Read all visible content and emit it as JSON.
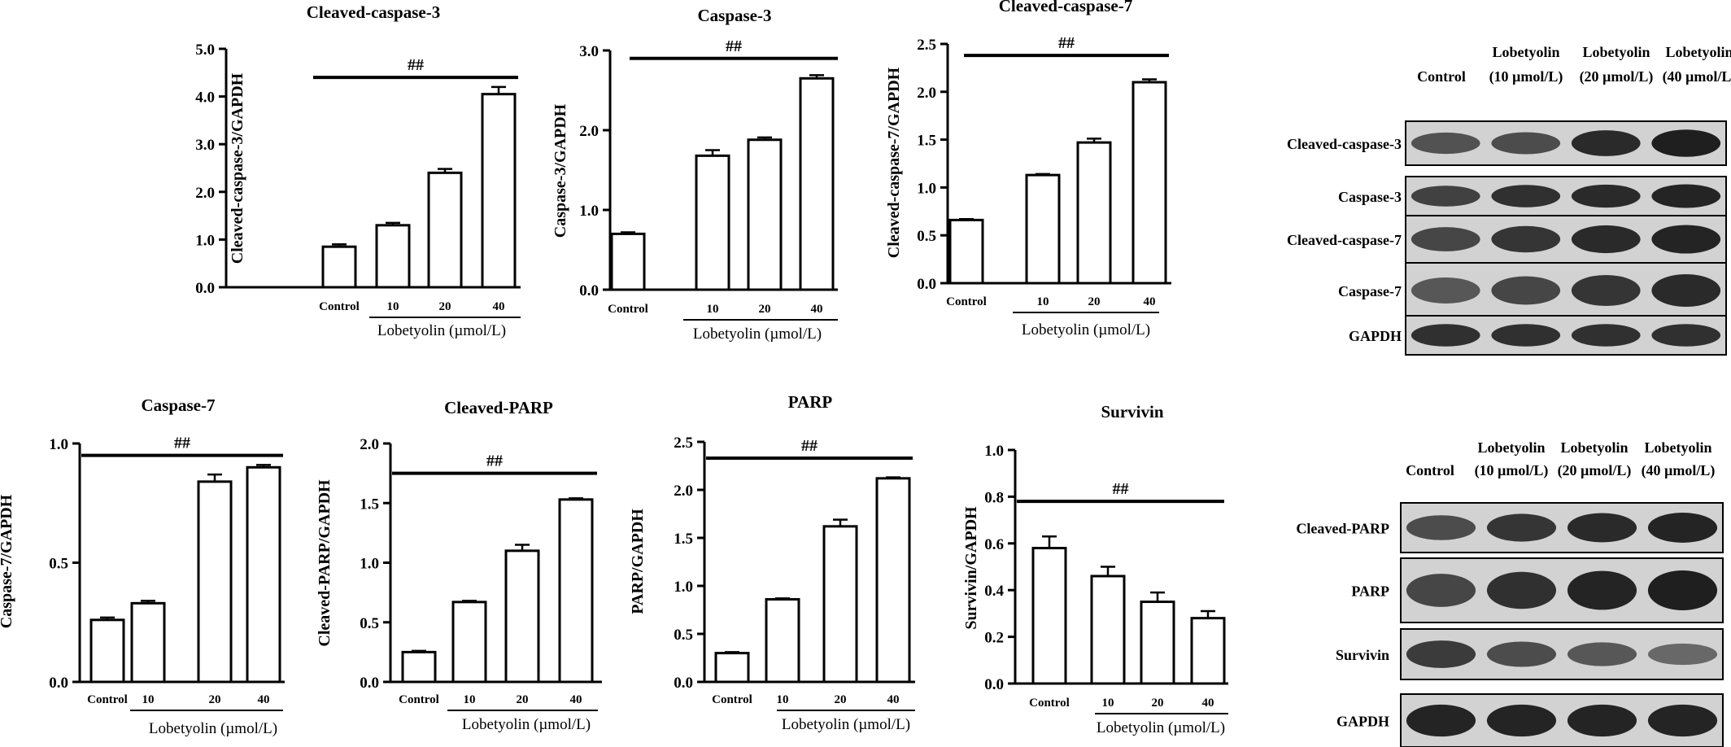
{
  "colors": {
    "bar_fill": "#ffffff",
    "ink": "#000000",
    "band": "#151515",
    "membrane": "#d2d2d2"
  },
  "chart_data": [
    {
      "type": "bar",
      "title": "Cleaved-caspase-3",
      "ylabel": "Cleaved-caspase-3/GAPDH",
      "xlabel": "Lobetyolin (µmol/L)",
      "categories": [
        "Control",
        "10",
        "20",
        "40"
      ],
      "values": [
        0.85,
        1.3,
        2.4,
        4.05
      ],
      "errors": [
        0.05,
        0.05,
        0.08,
        0.15
      ],
      "ylim": [
        0,
        5
      ],
      "yticks": [
        "0.0",
        "1.0",
        "2.0",
        "3.0",
        "4.0",
        "5.0"
      ],
      "significance": "##",
      "sig_level": 4.4
    },
    {
      "type": "bar",
      "title": "Caspase-3",
      "ylabel": "Caspase-3/GAPDH",
      "xlabel": "Lobetyolin (µmol/L)",
      "categories": [
        "Control",
        "10",
        "20",
        "40"
      ],
      "values": [
        0.7,
        1.68,
        1.88,
        2.65
      ],
      "errors": [
        0.02,
        0.07,
        0.03,
        0.04
      ],
      "ylim": [
        0,
        3
      ],
      "yticks": [
        "0.0",
        "1.0",
        "2.0",
        "3.0"
      ],
      "significance": "##",
      "sig_level": 2.9
    },
    {
      "type": "bar",
      "title": "Cleaved-caspase-7",
      "ylabel": "Cleaved-caspase-7/GAPDH",
      "xlabel": "Lobetyolin (µmol/L)",
      "categories": [
        "Control",
        "10",
        "20",
        "40"
      ],
      "values": [
        0.66,
        1.13,
        1.47,
        2.1
      ],
      "errors": [
        0.01,
        0.01,
        0.04,
        0.03
      ],
      "ylim": [
        0,
        2.5
      ],
      "yticks": [
        "0.0",
        "0.5",
        "1.0",
        "1.5",
        "2.0",
        "2.5"
      ],
      "significance": "##",
      "sig_level": 2.38
    },
    {
      "type": "bar",
      "title": "Caspase-7",
      "ylabel": "Caspase-7/GAPDH",
      "xlabel": "Lobetyolin (µmol/L)",
      "categories": [
        "Control",
        "10",
        "20",
        "40"
      ],
      "values": [
        0.26,
        0.33,
        0.84,
        0.9
      ],
      "errors": [
        0.01,
        0.01,
        0.03,
        0.01
      ],
      "ylim": [
        0,
        1
      ],
      "yticks": [
        "0.0",
        "0.5",
        "1.0"
      ],
      "significance": "##",
      "sig_level": 0.95
    },
    {
      "type": "bar",
      "title": "Cleaved-PARP",
      "ylabel": "Cleaved-PARP/GAPDH",
      "xlabel": "Lobetyolin (µmol/L)",
      "categories": [
        "Control",
        "10",
        "20",
        "40"
      ],
      "values": [
        0.25,
        0.67,
        1.1,
        1.53
      ],
      "errors": [
        0.01,
        0.01,
        0.05,
        0.01
      ],
      "ylim": [
        0,
        2
      ],
      "yticks": [
        "0.0",
        "0.5",
        "1.0",
        "1.5",
        "2.0"
      ],
      "significance": "##",
      "sig_level": 1.75
    },
    {
      "type": "bar",
      "title": "PARP",
      "ylabel": "PARP/GAPDH",
      "xlabel": "Lobetyolin (µmol/L)",
      "categories": [
        "Control",
        "10",
        "20",
        "40"
      ],
      "values": [
        0.3,
        0.86,
        1.62,
        2.12
      ],
      "errors": [
        0.01,
        0.01,
        0.07,
        0.01
      ],
      "ylim": [
        0,
        2.5
      ],
      "yticks": [
        "0.0",
        "0.5",
        "1.0",
        "1.5",
        "2.0",
        "2.5"
      ],
      "significance": "##",
      "sig_level": 2.33
    },
    {
      "type": "bar",
      "title": "Survivin",
      "ylabel": "Survivin/GAPDH",
      "xlabel": "Lobetyolin (µmol/L)",
      "categories": [
        "Control",
        "10",
        "20",
        "40"
      ],
      "values": [
        0.58,
        0.46,
        0.35,
        0.28
      ],
      "errors": [
        0.05,
        0.04,
        0.04,
        0.03
      ],
      "ylim": [
        0,
        1
      ],
      "yticks": [
        "0.0",
        "0.2",
        "0.4",
        "0.6",
        "0.8",
        "1.0"
      ],
      "significance": "##",
      "sig_level": 0.78
    }
  ],
  "western_blots": [
    {
      "columns": [
        {
          "line1": "",
          "line2": "Control"
        },
        {
          "line1": "Lobetyolin",
          "line2": "(10 µmol/L)"
        },
        {
          "line1": "Lobetyolin",
          "line2": "(20 µmol/L)"
        },
        {
          "line1": "Lobetyolin",
          "line2": "(40 µmol/L)"
        }
      ],
      "rows": [
        {
          "label": "Cleaved-caspase-3",
          "intensity": [
            0.55,
            0.6,
            0.9,
            1.0
          ]
        },
        {
          "label": "Caspase-3",
          "intensity": [
            0.7,
            0.85,
            0.9,
            0.95
          ]
        },
        {
          "label": "Cleaved-caspase-7",
          "intensity": [
            0.65,
            0.8,
            0.9,
            0.95
          ]
        },
        {
          "label": "Caspase-7",
          "intensity": [
            0.5,
            0.65,
            0.8,
            0.9
          ]
        },
        {
          "label": "GAPDH",
          "intensity": [
            0.85,
            0.85,
            0.85,
            0.85
          ]
        }
      ]
    },
    {
      "columns": [
        {
          "line1": "",
          "line2": "Control"
        },
        {
          "line1": "Lobetyolin",
          "line2": "(10 µmol/L)"
        },
        {
          "line1": "Lobetyolin",
          "line2": "(20 µmol/L)"
        },
        {
          "line1": "Lobetyolin",
          "line2": "(40 µmol/L)"
        }
      ],
      "rows": [
        {
          "label": "Cleaved-PARP",
          "intensity": [
            0.6,
            0.8,
            0.9,
            0.95
          ]
        },
        {
          "label": "PARP",
          "intensity": [
            0.65,
            0.85,
            0.95,
            1.0
          ]
        },
        {
          "label": "Survivin",
          "intensity": [
            0.75,
            0.6,
            0.5,
            0.35
          ]
        },
        {
          "label": "GAPDH",
          "intensity": [
            0.95,
            0.95,
            0.95,
            0.95
          ]
        }
      ]
    }
  ]
}
